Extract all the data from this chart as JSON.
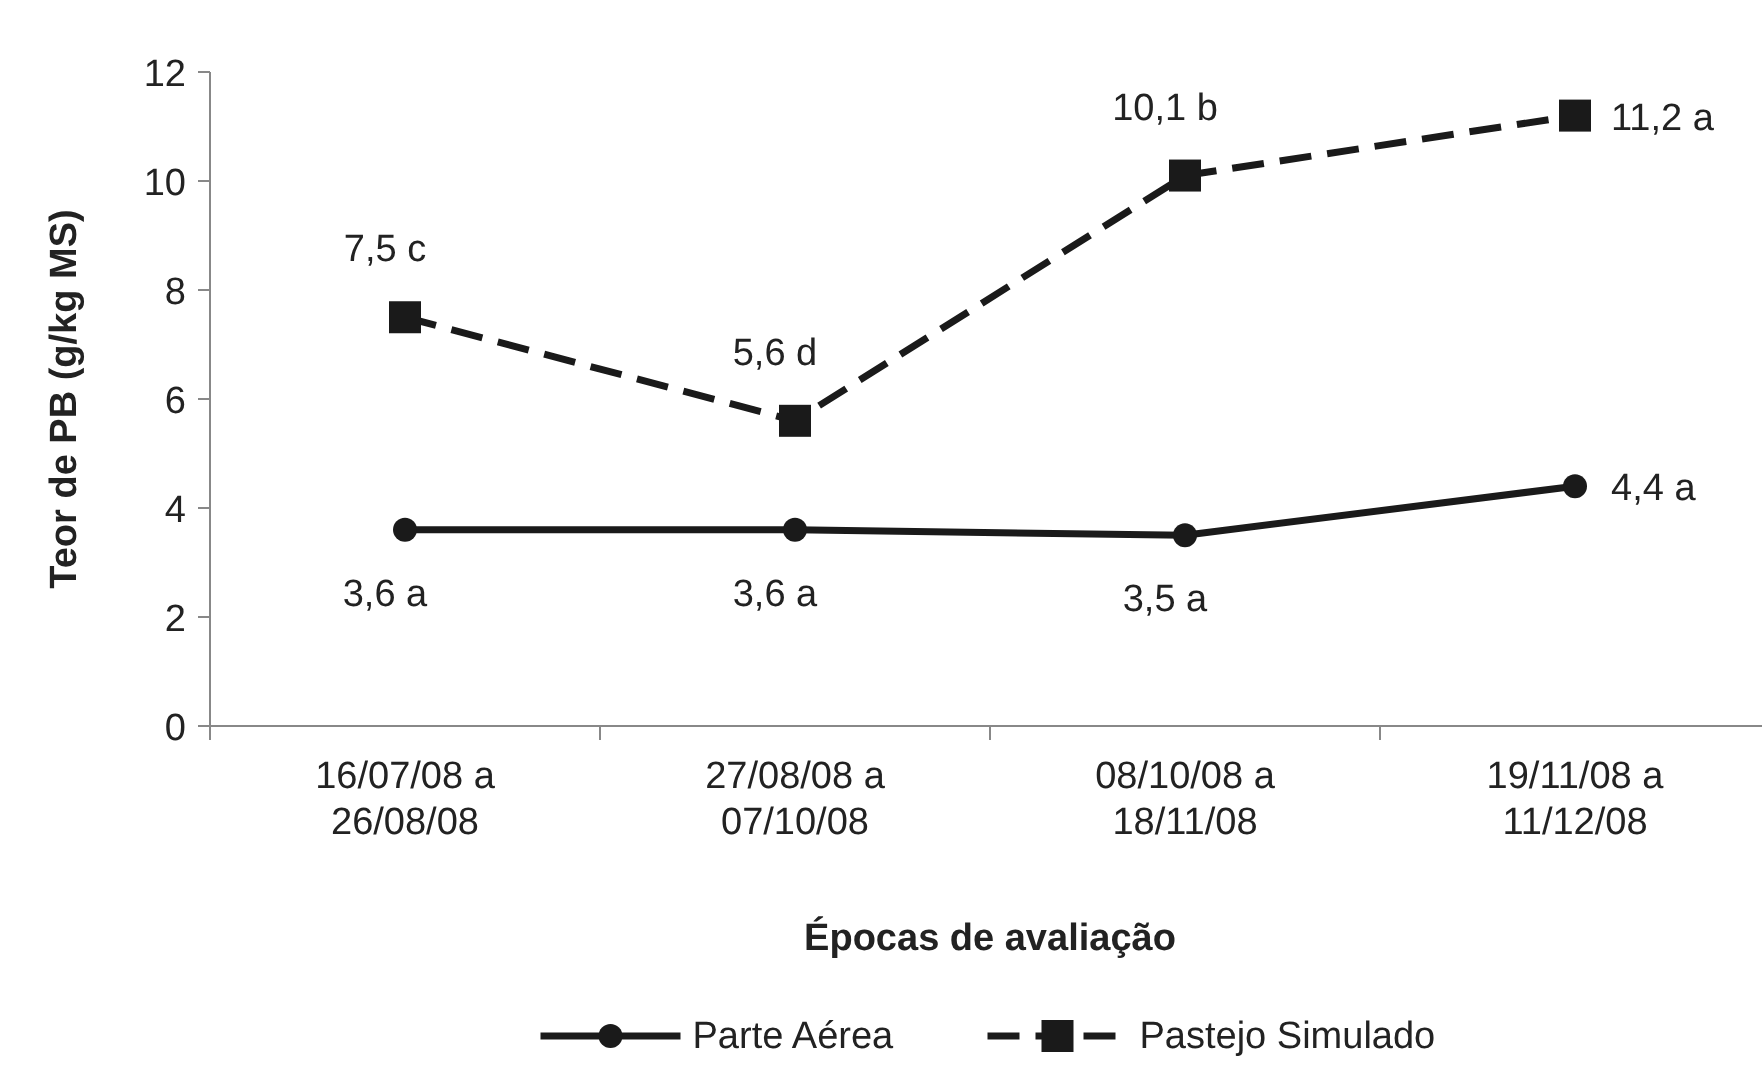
{
  "chart_data": {
    "type": "line",
    "xlabel": "Épocas de avaliação",
    "ylabel": "Teor de PB (g/kg MS)",
    "categories": [
      "16/07/08 a\n26/08/08",
      "27/08/08 a\n07/10/08",
      "08/10/08 a\n18/11/08",
      "19/11/08 a\n11/12/08"
    ],
    "ylim": [
      0,
      12
    ],
    "yticks": [
      0,
      2,
      4,
      6,
      8,
      10,
      12
    ],
    "legend": "bottom",
    "series": [
      {
        "name": "Parte Aérea",
        "color": "#1a1a1a",
        "values": [
          3.6,
          3.6,
          3.5,
          4.4
        ],
        "value_labels": [
          "3,6 a",
          "3,6 a",
          "3,5 a",
          "4,4 a"
        ],
        "marker": "circle",
        "line_style": "solid"
      },
      {
        "name": "Pastejo Simulado",
        "color": "#1a1a1a",
        "values": [
          7.5,
          5.6,
          10.1,
          11.2
        ],
        "value_labels": [
          "7,5 c",
          "5,6 d",
          "10,1 b",
          "11,2 a"
        ],
        "marker": "square",
        "line_style": "dashed"
      }
    ]
  }
}
